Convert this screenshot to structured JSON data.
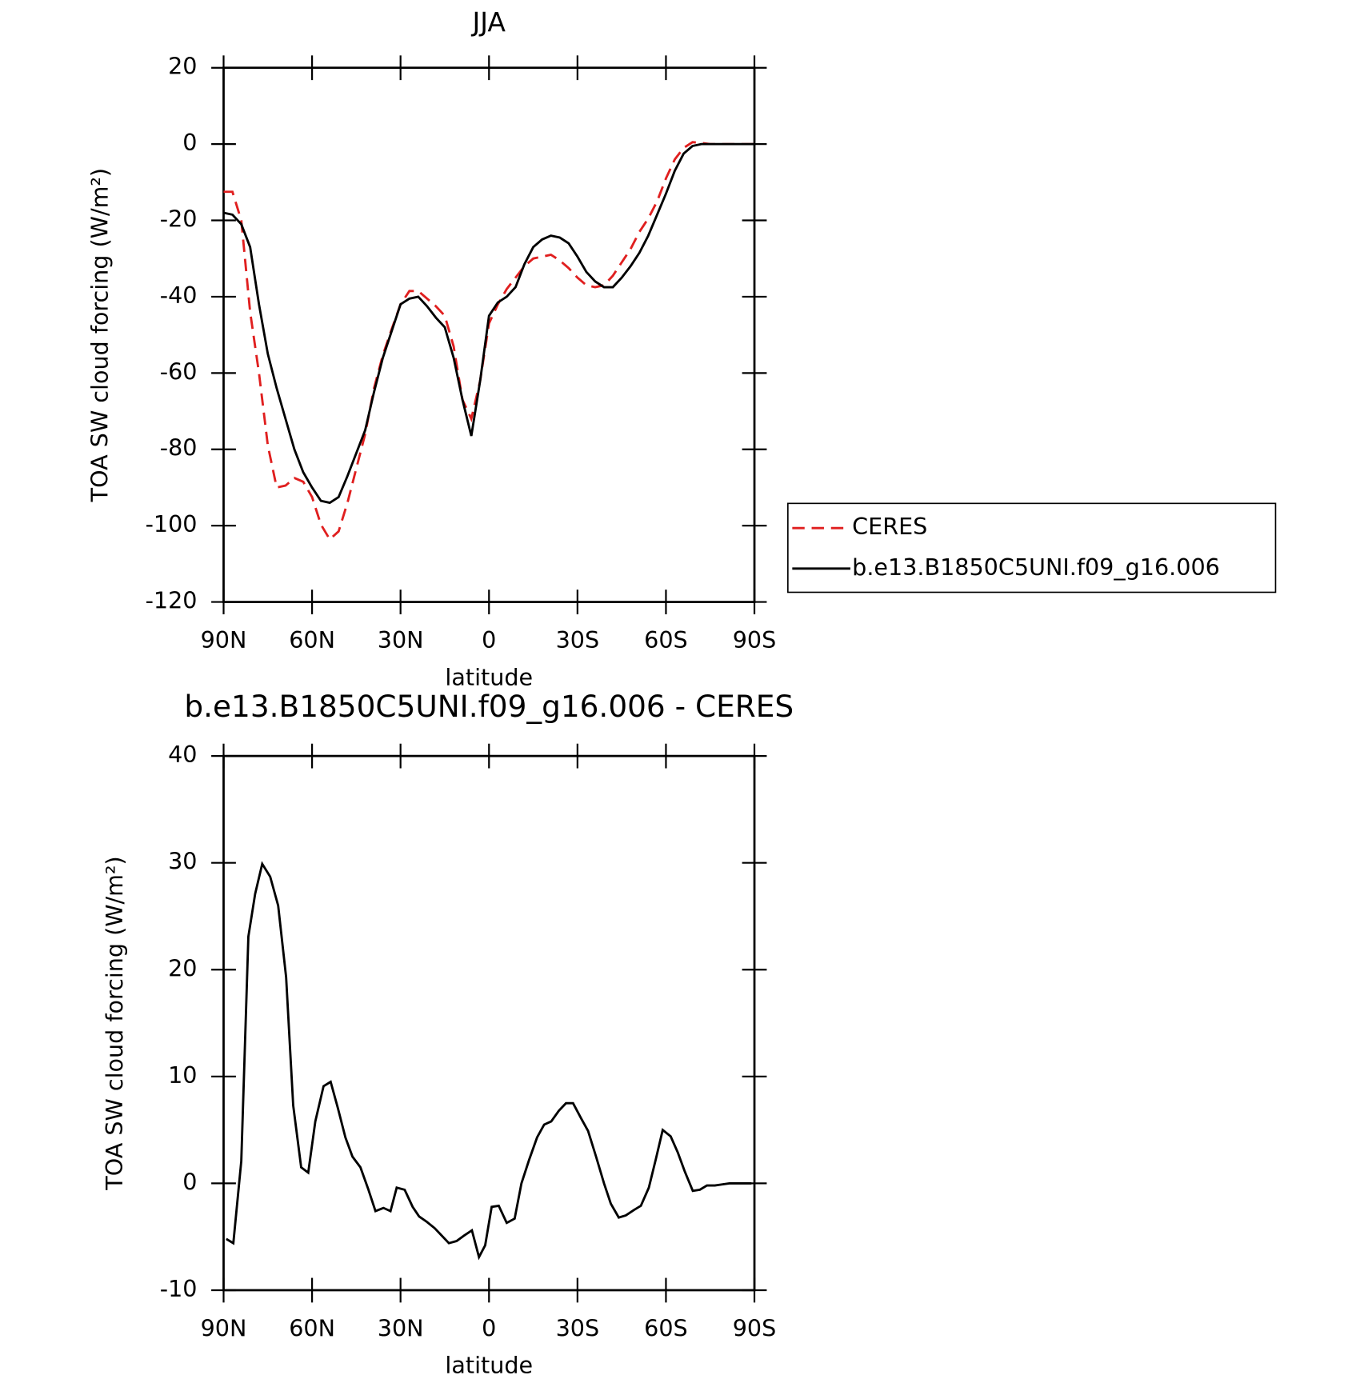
{
  "chart_data": [
    {
      "type": "line",
      "title": "JJA",
      "xlabel": "latitude",
      "ylabel": "TOA SW cloud forcing (W/m²)",
      "x": [
        90,
        87,
        84,
        81,
        78,
        75,
        72,
        69,
        66,
        63,
        60,
        57,
        54,
        51,
        48,
        45,
        42,
        39,
        36,
        33,
        30,
        27,
        24,
        21,
        18,
        15,
        12,
        9,
        6,
        3,
        0,
        -3,
        -6,
        -9,
        -12,
        -15,
        -18,
        -21,
        -24,
        -27,
        -30,
        -33,
        -36,
        -39,
        -42,
        -45,
        -48,
        -51,
        -54,
        -57,
        -60,
        -63,
        -66,
        -69,
        -72,
        -75,
        -78,
        -81,
        -84,
        -87,
        -90
      ],
      "series": [
        {
          "name": "CERES",
          "color": "#e01f1f",
          "line_style": "dashed",
          "values": [
            -12.5,
            -12.5,
            -20,
            -44,
            -60,
            -79,
            -90,
            -89.5,
            -87.5,
            -88.5,
            -92.5,
            -99.7,
            -103.6,
            -101.5,
            -94,
            -85,
            -76,
            -64,
            -55.3,
            -48.5,
            -42,
            -38.5,
            -38.5,
            -40.5,
            -42.5,
            -45,
            -53,
            -67,
            -72,
            -62,
            -47,
            -42,
            -38,
            -35,
            -32,
            -30,
            -29.5,
            -29,
            -30.5,
            -32.5,
            -35,
            -37,
            -37.5,
            -37,
            -34.5,
            -31,
            -27.5,
            -23,
            -19.5,
            -15,
            -9,
            -4,
            -1,
            0.5,
            0.3,
            0,
            0,
            0,
            0,
            0,
            0
          ]
        },
        {
          "name": "b.e13.B1850C5UNI.f09_g16.006",
          "color": "#000000",
          "line_style": "solid",
          "values": [
            -18,
            -18.5,
            -21,
            -27,
            -42,
            -55,
            -64,
            -72,
            -80,
            -86,
            -90,
            -93.5,
            -94,
            -92.5,
            -87,
            -81,
            -75,
            -65,
            -56,
            -49,
            -42,
            -40.5,
            -40,
            -42.5,
            -45.5,
            -48,
            -56,
            -67,
            -76.5,
            -62,
            -45,
            -41.5,
            -40,
            -37.5,
            -31.5,
            -27,
            -25,
            -24,
            -24.5,
            -26,
            -29.5,
            -33.5,
            -36,
            -37.5,
            -37.5,
            -35,
            -32,
            -28.5,
            -24,
            -18.5,
            -13,
            -7,
            -2.5,
            -0.5,
            0,
            0,
            0,
            0,
            0,
            0,
            0
          ]
        }
      ],
      "xlim": [
        90,
        -90
      ],
      "xticks": [
        {
          "value": 90,
          "label": "90N"
        },
        {
          "value": 60,
          "label": "60N"
        },
        {
          "value": 30,
          "label": "30N"
        },
        0,
        {
          "value": -30,
          "label": "30S"
        },
        {
          "value": -60,
          "label": "60S"
        },
        {
          "value": -90,
          "label": "90S"
        }
      ],
      "ylim": [
        -120,
        20
      ],
      "yticks": [
        -120,
        -100,
        -80,
        -60,
        -40,
        -20,
        0,
        20
      ],
      "legend": "right"
    },
    {
      "type": "line",
      "title": "b.e13.B1850C5UNI.f09_g16.006 - CERES",
      "xlabel": "latitude",
      "ylabel": "TOA SW cloud forcing (W/m²)",
      "x": [
        89.1,
        86.7,
        84.0,
        81.6,
        79.3,
        76.9,
        74.2,
        71.5,
        68.8,
        66.4,
        63.7,
        61.3,
        58.9,
        56.1,
        53.7,
        51.3,
        48.7,
        46.3,
        43.6,
        41.0,
        38.5,
        35.8,
        33.4,
        31.3,
        28.6,
        25.9,
        23.7,
        21.1,
        18.4,
        16.0,
        13.6,
        11.0,
        8.5,
        5.8,
        3.4,
        1.3,
        -0.9,
        -3.3,
        -6.0,
        -8.7,
        -11.0,
        -13.6,
        -16.3,
        -18.7,
        -21.1,
        -23.7,
        -26.1,
        -28.5,
        -31.2,
        -33.6,
        -36.3,
        -39.0,
        -41.3,
        -44.0,
        -46.4,
        -49.1,
        -51.5,
        -54.2,
        -56.6,
        -58.9,
        -61.6,
        -64.0,
        -66.4,
        -69.1,
        -71.5,
        -73.9,
        -76.6,
        -79.0,
        -81.5,
        -84,
        -86.5,
        -89
      ],
      "values": [
        -5.2,
        -5.6,
        2.1,
        23.1,
        27.1,
        29.9,
        28.7,
        26.0,
        19.3,
        7.3,
        1.5,
        1.0,
        5.8,
        9.1,
        9.5,
        7.1,
        4.3,
        2.5,
        1.5,
        -0.5,
        -2.6,
        -2.3,
        -2.6,
        -0.4,
        -0.6,
        -2.2,
        -3.1,
        -3.6,
        -4.2,
        -4.9,
        -5.6,
        -5.4,
        -4.9,
        -4.4,
        -6.9,
        -5.8,
        -2.2,
        -2.1,
        -3.7,
        -3.3,
        0,
        2.2,
        4.3,
        5.5,
        5.8,
        6.8,
        7.5,
        7.5,
        6.1,
        4.9,
        2.5,
        0,
        -1.9,
        -3.2,
        -3.0,
        -2.5,
        -2.1,
        -0.4,
        2.3,
        5.0,
        4.4,
        2.9,
        1.1,
        -0.7,
        -0.6,
        -0.2,
        -0.2,
        -0.1,
        0,
        0,
        0,
        0
      ],
      "color": "#000000",
      "line_style": "solid",
      "xlim": [
        90,
        -90
      ],
      "xticks": [
        {
          "value": 90,
          "label": "90N"
        },
        {
          "value": 60,
          "label": "60N"
        },
        {
          "value": 30,
          "label": "30N"
        },
        0,
        {
          "value": -30,
          "label": "30S"
        },
        {
          "value": -60,
          "label": "60S"
        },
        {
          "value": -90,
          "label": "90S"
        }
      ],
      "ylim": [
        -10,
        40
      ],
      "yticks": [
        -10,
        0,
        10,
        20,
        30,
        40
      ]
    }
  ]
}
